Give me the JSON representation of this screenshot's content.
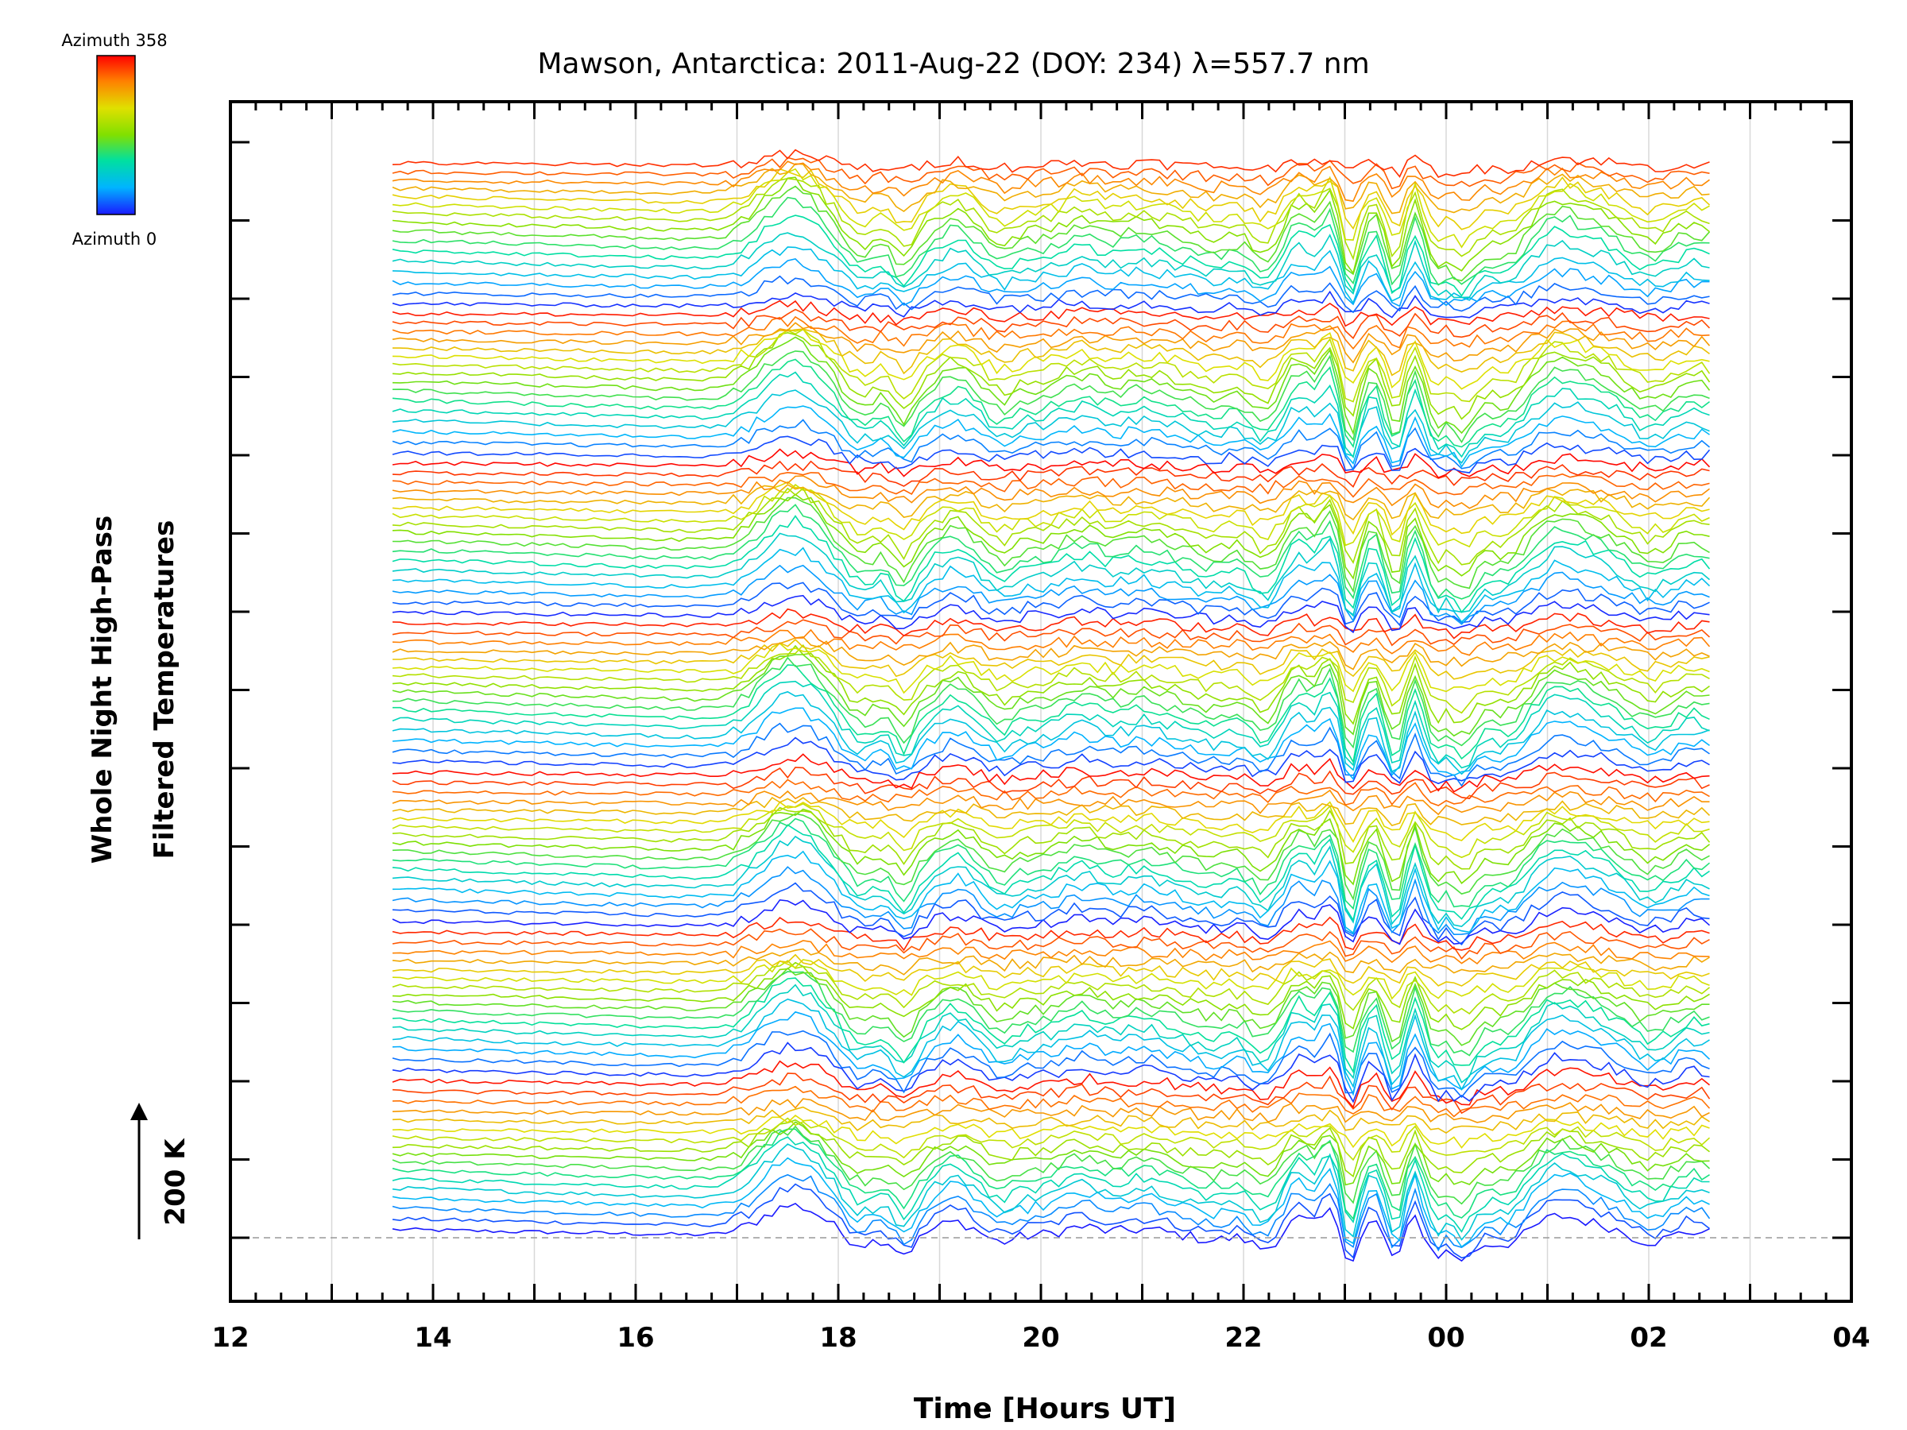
{
  "chart_data": {
    "type": "line",
    "title": "Mawson, Antarctica: 2011-Aug-22 (DOY: 234) λ=557.7 nm",
    "xlabel": "Time [Hours UT]",
    "ylabel_line1": "Whole Night High-Pass",
    "ylabel_line2": "Filtered Temperatures",
    "x_tick_labels": [
      "12",
      "14",
      "16",
      "18",
      "20",
      "22",
      "00",
      "02",
      "04"
    ],
    "x_range_hours": [
      12,
      28
    ],
    "data_x_range_hours": [
      13.6,
      26.6
    ],
    "scale_label": "200 K",
    "colorbar": {
      "top_label": "Azimuth  358",
      "bottom_label": "Azimuth  0",
      "min": 0,
      "max": 358
    },
    "stacked_series_count": 115,
    "azimuth_cycles": 7,
    "colormap": [
      "#1a1aff",
      "#00b4ff",
      "#00e0a0",
      "#80e000",
      "#e0e000",
      "#ff8000",
      "#ff0000"
    ],
    "grid": true,
    "baseline_dashed": true
  }
}
